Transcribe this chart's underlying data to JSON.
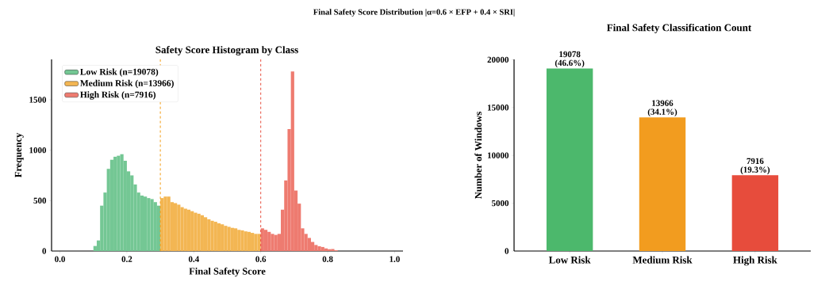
{
  "chart_data": [
    {
      "type": "histogram",
      "title": "Final Safety Score Distribution  |α=0.6 × EFP + 0.4 × SRI|",
      "subtitle": "Safety Score Histogram by Class",
      "xlabel": "Final Safety Score",
      "ylabel": "Frequency",
      "bins": [
        0.1,
        0.11,
        0.12,
        0.13,
        0.14,
        0.15,
        0.16,
        0.17,
        0.18,
        0.19,
        0.2,
        0.21,
        0.22,
        0.23,
        0.24,
        0.25,
        0.26,
        0.27,
        0.28,
        0.29,
        0.3,
        0.31,
        0.32,
        0.33,
        0.34,
        0.35,
        0.36,
        0.37,
        0.38,
        0.39,
        0.4,
        0.41,
        0.42,
        0.43,
        0.44,
        0.45,
        0.46,
        0.47,
        0.48,
        0.49,
        0.5,
        0.51,
        0.52,
        0.53,
        0.54,
        0.55,
        0.56,
        0.57,
        0.58,
        0.59,
        0.6,
        0.61,
        0.62,
        0.63,
        0.64,
        0.65,
        0.66,
        0.67,
        0.68,
        0.69,
        0.7,
        0.71,
        0.72,
        0.73,
        0.74,
        0.75,
        0.76,
        0.77,
        0.78,
        0.79,
        0.8,
        0.81,
        0.82,
        0.83
      ],
      "series": [
        {
          "name": "Low Risk (n=19078)",
          "color": "#74c794",
          "values": [
            50,
            105,
            450,
            580,
            815,
            905,
            935,
            945,
            960,
            895,
            790,
            750,
            660,
            580,
            550,
            540,
            525,
            515,
            485,
            450,
            null,
            null,
            null,
            null,
            null,
            null,
            null,
            null,
            null,
            null,
            null,
            null,
            null,
            null,
            null,
            null,
            null,
            null,
            null,
            null,
            null,
            null,
            null,
            null,
            null,
            null,
            null,
            null,
            null,
            null,
            null,
            null,
            null,
            null,
            null,
            null,
            null,
            null,
            null,
            null,
            null,
            null,
            null,
            null,
            null,
            null,
            null,
            null,
            null,
            null,
            null,
            null,
            null
          ]
        },
        {
          "name": "Medium Risk (n=13966)",
          "color": "#f3b653",
          "values": [
            null,
            null,
            null,
            null,
            null,
            null,
            null,
            null,
            null,
            null,
            null,
            null,
            null,
            null,
            null,
            null,
            null,
            null,
            null,
            null,
            525,
            540,
            540,
            485,
            475,
            460,
            435,
            420,
            410,
            395,
            380,
            370,
            355,
            335,
            315,
            300,
            290,
            275,
            265,
            250,
            240,
            230,
            225,
            210,
            205,
            195,
            190,
            180,
            170,
            170,
            null,
            null,
            null,
            null,
            null,
            null,
            null,
            null,
            null,
            null,
            null,
            null,
            null,
            null,
            null,
            null,
            null,
            null,
            null,
            null,
            null,
            null,
            null
          ]
        },
        {
          "name": "High Risk (n=7916)",
          "color": "#ee7b70",
          "values": [
            null,
            null,
            null,
            null,
            null,
            null,
            null,
            null,
            null,
            null,
            null,
            null,
            null,
            null,
            null,
            null,
            null,
            null,
            null,
            null,
            null,
            null,
            null,
            null,
            null,
            null,
            null,
            null,
            null,
            null,
            null,
            null,
            null,
            null,
            null,
            null,
            null,
            null,
            null,
            null,
            null,
            null,
            null,
            null,
            null,
            null,
            null,
            null,
            null,
            null,
            225,
            210,
            190,
            170,
            160,
            170,
            410,
            700,
            1210,
            1780,
            600,
            470,
            225,
            170,
            130,
            90,
            60,
            47,
            40,
            26,
            18,
            20,
            8
          ]
        }
      ],
      "xlim": [
        -0.025,
        1.025
      ],
      "ylim": [
        0,
        1900
      ],
      "xticks": [
        {
          "value": 0,
          "label": "0.0"
        },
        {
          "value": 0.2,
          "label": "0.2"
        },
        {
          "value": 0.4,
          "label": "0.4"
        },
        {
          "value": 0.6,
          "label": "0.6"
        },
        {
          "value": 0.8,
          "label": "0.8"
        },
        {
          "value": 1,
          "label": "1.0"
        }
      ],
      "yticks": [
        0,
        500,
        1000,
        1500
      ],
      "ref_lines": [
        {
          "axis": "x",
          "value": 0.3,
          "color": "#f39c12",
          "line_style": "dashed"
        },
        {
          "axis": "x",
          "value": 0.6,
          "color": "#e74c3c",
          "line_style": "dashed"
        }
      ],
      "legend": "top left",
      "grid": false
    },
    {
      "type": "bar",
      "title": "Final Safety Classification Count",
      "ylabel": "Number of Windows",
      "categories": [
        "Low Risk",
        "Medium Risk",
        "High Risk"
      ],
      "values": [
        19078,
        13966,
        7916
      ],
      "colors": [
        "#4cb86c",
        "#f29c1f",
        "#e74c3c"
      ],
      "value_labels": [
        "19078 (46.6%)",
        "13966 (34.1%)",
        "7916 (19.3%)"
      ],
      "ylim": [
        0,
        20032
      ],
      "yticks": [
        0,
        5000,
        10000,
        15000,
        20000
      ],
      "grid": false
    }
  ]
}
